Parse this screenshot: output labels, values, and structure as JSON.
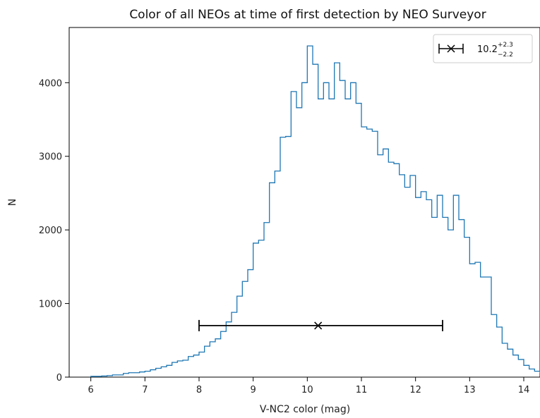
{
  "chart_data": {
    "type": "histogram",
    "title": "Color of all NEOs at time of first detection by NEO Surveyor",
    "xlabel": "V-NC2 color (mag)",
    "ylabel": "N",
    "xlim": [
      5.6,
      14.3
    ],
    "ylim": [
      0,
      4750
    ],
    "xticks": [
      6,
      7,
      8,
      9,
      10,
      11,
      12,
      13,
      14
    ],
    "yticks": [
      0,
      1000,
      2000,
      3000,
      4000
    ],
    "grid": false,
    "series_color": "#1f77b4",
    "bin_width": 0.1,
    "x_start": 6.0,
    "counts": [
      10,
      10,
      15,
      20,
      30,
      30,
      50,
      60,
      60,
      70,
      80,
      100,
      120,
      140,
      160,
      200,
      220,
      230,
      280,
      300,
      340,
      420,
      480,
      520,
      620,
      750,
      880,
      1100,
      1300,
      1460,
      1820,
      1860,
      2100,
      2640,
      2800,
      3260,
      3270,
      3880,
      3660,
      4000,
      4500,
      4250,
      3780,
      4000,
      3780,
      4270,
      4030,
      3780,
      4000,
      3720,
      3400,
      3370,
      3340,
      3020,
      3100,
      2920,
      2900,
      2750,
      2580,
      2740,
      2440,
      2520,
      2410,
      2170,
      2470,
      2170,
      2000,
      2470,
      2140,
      1900,
      1540,
      1560,
      1360,
      1360,
      850,
      680,
      460,
      380,
      300,
      240,
      160,
      110,
      80,
      60,
      30,
      20,
      10,
      10,
      10,
      5,
      5,
      5
    ],
    "annotation": {
      "marker": "x",
      "x": 10.2,
      "xerr_low": 2.2,
      "xerr_high": 2.3,
      "y": 700,
      "color": "#000000"
    },
    "legend": {
      "position": "top-right",
      "value": "10.2",
      "plus": "+2.3",
      "minus": "−2.2"
    }
  }
}
